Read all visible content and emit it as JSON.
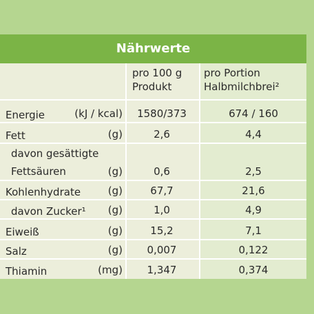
{
  "header": {
    "title": "Nährwerte"
  },
  "table": {
    "columns": [
      "pro 100 g Produkt",
      "pro Portion Halbmilchbrei²"
    ],
    "rows": [
      [
        "Energie",
        "(kJ / kcal)",
        "1580/373",
        "674 / 160"
      ],
      [
        "Fett",
        "(g)",
        "2,6",
        "4,4"
      ],
      [
        "davon gesättigte Fettsäuren",
        "(g)",
        "0,6",
        "2,5"
      ],
      [
        "Kohlenhydrate",
        "(g)",
        "67,7",
        "21,6"
      ],
      [
        "davon Zucker¹",
        "(g)",
        "1,0",
        "4,9"
      ],
      [
        "Eiweiß",
        "(g)",
        "15,2",
        "7,1"
      ],
      [
        "Salz",
        "(g)",
        "0,007",
        "0,122"
      ],
      [
        "Thiamin",
        "(mg)",
        "1,347",
        "0,374"
      ]
    ]
  }
}
